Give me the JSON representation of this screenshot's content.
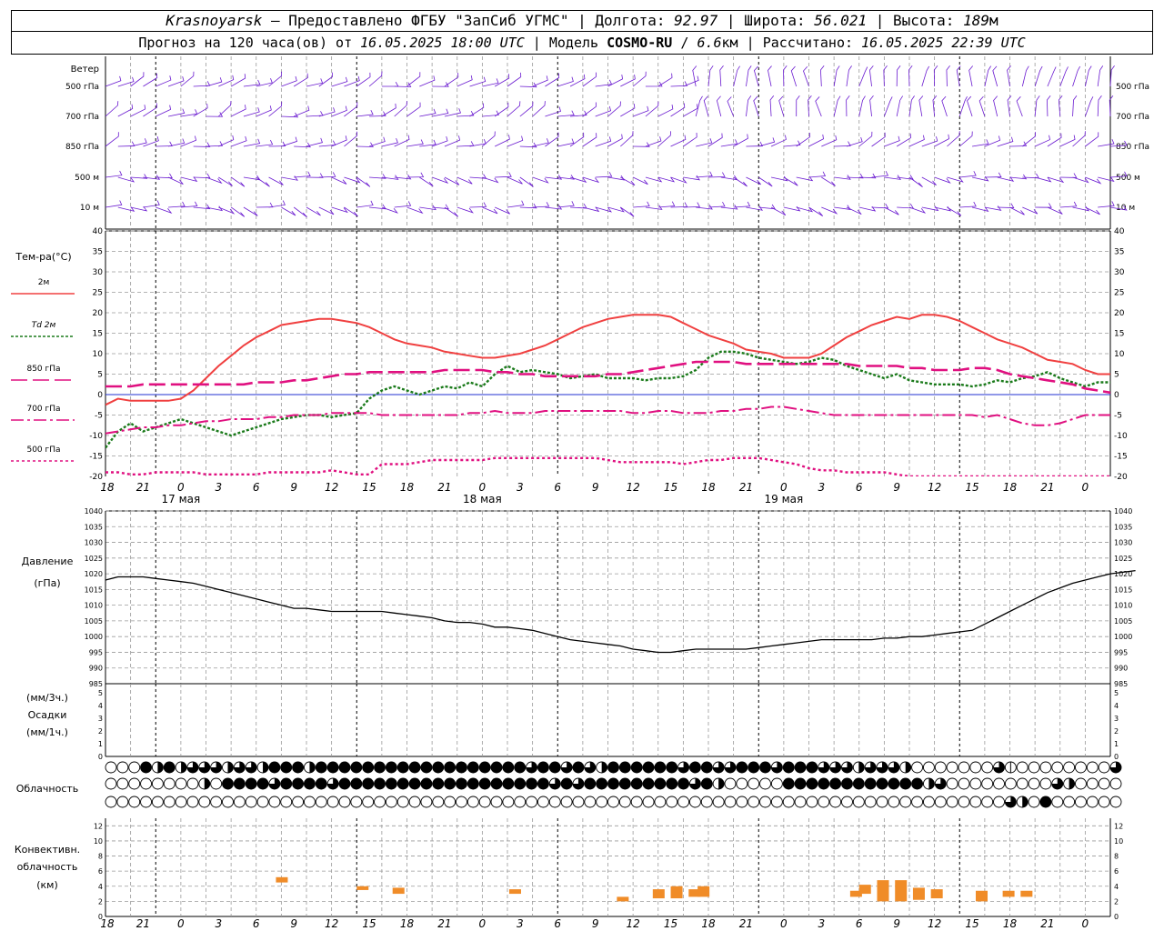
{
  "header": {
    "station": "Krasnoyarsk",
    "dash": " — ",
    "provider": "Предоставлено ФГБУ \"ЗапСиб УГМС\"",
    "lon_label": "Долгота:",
    "lon": "92.97",
    "lat_label": "Широта:",
    "lat": "56.021",
    "alt_label": "Высота:",
    "alt": "189",
    "alt_unit": "м",
    "forecast_label": "Прогноз на 120 часа(ов) от",
    "forecast_start": "16.05.2025 18:00 UTC",
    "model_label": "Модель",
    "model": "COSMO-RU",
    "model_res": "6.6",
    "model_res_unit": "км",
    "computed_label": "Рассчитано:",
    "computed": "16.05.2025 22:39 UTC"
  },
  "chart_data": {
    "type": "line",
    "time_axis": {
      "hour_ticks": [
        "18",
        "21",
        "0",
        "3",
        "6",
        "9",
        "12",
        "15",
        "18",
        "21",
        "0",
        "3",
        "6",
        "9",
        "12",
        "15",
        "18",
        "21",
        "0",
        "3",
        "6",
        "9",
        "12",
        "15",
        "18",
        "21",
        "0"
      ],
      "day_labels": [
        "17 мая",
        "18 мая",
        "19 мая"
      ]
    },
    "wind": {
      "title": "Ветер",
      "levels": [
        "500 гПа",
        "700 гПа",
        "850 гПа",
        "500 м",
        "10 м"
      ],
      "levels_right": [
        "500 гПа",
        "700 гПа",
        "850 гПа",
        "500 м",
        "10 м"
      ]
    },
    "temperature": {
      "title": "Тем-ра(°C)",
      "ylim": [
        -20,
        40
      ],
      "yticks": [
        "40",
        "35",
        "30",
        "25",
        "20",
        "15",
        "10",
        "5",
        "0",
        "-5",
        "-10",
        "-15",
        "-20"
      ],
      "series": [
        {
          "name": "2м",
          "color": "#f04040",
          "values": [
            -2.5,
            -1,
            -1.5,
            -1.5,
            -1.5,
            -1.5,
            -1,
            1,
            4,
            7,
            9.5,
            12,
            14,
            15.5,
            17,
            17.5,
            18,
            18.5,
            18.5,
            18,
            17.5,
            16.5,
            15,
            13.5,
            12.5,
            12,
            11.5,
            10.5,
            10,
            9.5,
            9,
            9,
            9.5,
            10,
            11,
            12,
            13.5,
            15,
            16.5,
            17.5,
            18.5,
            19,
            19.5,
            19.5,
            19.5,
            19,
            17.5,
            16,
            14.5,
            13.5,
            12.5,
            11,
            10.5,
            10,
            9,
            9,
            9,
            10,
            12,
            14,
            15.5,
            17,
            18,
            19,
            18.5,
            19.5,
            19.5,
            19,
            18,
            16.5,
            15,
            13.5,
            12.5,
            11.5,
            10,
            8.5,
            8,
            7.5,
            6,
            5,
            5,
            7
          ]
        },
        {
          "name": "Td 2м",
          "color": "#1a7a1a",
          "values": [
            -13,
            -9,
            -7,
            -9,
            -8,
            -7,
            -6,
            -7,
            -8,
            -9,
            -10,
            -9,
            -8,
            -7,
            -6,
            -5.5,
            -5,
            -5,
            -5.5,
            -5,
            -4.5,
            -1,
            1,
            2,
            1,
            0,
            1,
            2,
            1.5,
            3,
            2,
            5,
            7,
            5.5,
            6,
            5.5,
            5,
            4,
            4.5,
            5,
            4,
            4,
            4,
            3.5,
            4,
            4,
            4.5,
            6,
            9,
            10.5,
            10.5,
            10,
            9,
            8.5,
            8,
            7.5,
            8,
            9,
            8.5,
            7,
            6,
            5,
            4,
            5,
            3.5,
            3,
            2.5,
            2.5,
            2.5,
            2,
            2.5,
            3.5,
            3,
            4,
            4.5,
            5.5,
            4,
            3,
            2,
            3,
            3,
            3,
            3.5
          ]
        },
        {
          "name": "850 гПа",
          "color": "#e01080",
          "values": [
            2,
            2,
            2,
            2.5,
            2.5,
            2.5,
            2.5,
            2.5,
            2.5,
            2.5,
            2.5,
            2.5,
            3,
            3,
            3,
            3.5,
            3.5,
            4,
            4.5,
            5,
            5,
            5.5,
            5.5,
            5.5,
            5.5,
            5.5,
            5.5,
            6,
            6,
            6,
            6,
            5.5,
            5.5,
            5,
            5,
            4.5,
            4.5,
            4.5,
            4.5,
            4.5,
            5,
            5,
            5.5,
            6,
            6.5,
            7,
            7.5,
            8,
            8,
            8,
            8,
            7.5,
            7.5,
            7.5,
            7.5,
            7.5,
            7.5,
            7.5,
            7.5,
            7.5,
            7,
            7,
            7,
            7,
            6.5,
            6.5,
            6,
            6,
            6,
            6.5,
            6.5,
            6,
            5,
            4.5,
            4,
            3.5,
            3,
            2.5,
            1.5,
            1,
            0.5,
            0,
            -0.5,
            -1
          ]
        },
        {
          "name": "700 гПа",
          "color": "#e01080",
          "values": [
            -9.5,
            -9,
            -8.5,
            -8,
            -8,
            -7.5,
            -7.5,
            -7,
            -6.5,
            -6.5,
            -6,
            -6,
            -6,
            -5.5,
            -5.5,
            -5,
            -5,
            -5,
            -4.5,
            -4.5,
            -4.5,
            -4.5,
            -5,
            -5,
            -5,
            -5,
            -5,
            -5,
            -5,
            -4.5,
            -4.5,
            -4,
            -4.5,
            -4.5,
            -4.5,
            -4,
            -4,
            -4,
            -4,
            -4,
            -4,
            -4,
            -4.5,
            -4.5,
            -4,
            -4,
            -4.5,
            -4.5,
            -4.5,
            -4,
            -4,
            -3.5,
            -3.5,
            -3,
            -3,
            -3.5,
            -4,
            -4.5,
            -5,
            -5,
            -5,
            -5,
            -5,
            -5,
            -5,
            -5,
            -5,
            -5,
            -5,
            -5,
            -5.5,
            -5,
            -6,
            -7,
            -7.5,
            -7.5,
            -7,
            -6,
            -5,
            -5,
            -5,
            -5,
            -5
          ]
        },
        {
          "name": "500 гПа",
          "color": "#e01080",
          "values": [
            -19,
            -19,
            -19.5,
            -19.5,
            -19,
            -19,
            -19,
            -19,
            -19.5,
            -19.5,
            -19.5,
            -19.5,
            -19.5,
            -19,
            -19,
            -19,
            -19,
            -19,
            -18.5,
            -19,
            -19.5,
            -19.5,
            -17,
            -17,
            -17,
            -16.5,
            -16,
            -16,
            -16,
            -16,
            -16,
            -15.5,
            -15.5,
            -15.5,
            -15.5,
            -15.5,
            -15.5,
            -15.5,
            -15.5,
            -15.5,
            -16,
            -16.5,
            -16.5,
            -16.5,
            -16.5,
            -16.5,
            -17,
            -16.5,
            -16,
            -16,
            -15.5,
            -15.5,
            -15.5,
            -16,
            -16.5,
            -17,
            -18,
            -18.5,
            -18.5,
            -19,
            -19,
            -19,
            -19,
            -19.5,
            -20,
            -20.5,
            -21,
            -21,
            -21,
            -21,
            -20,
            -20.5,
            -21,
            -21,
            -21,
            -21,
            -21,
            -21,
            -21,
            -21,
            -21,
            -21,
            -21
          ]
        }
      ]
    },
    "pressure": {
      "title": "Давление",
      "unit": "(гПа)",
      "ylim": [
        985,
        1040
      ],
      "yticks": [
        "1040",
        "1035",
        "1030",
        "1025",
        "1020",
        "1015",
        "1010",
        "1005",
        "1000",
        "995",
        "990",
        "985"
      ],
      "color": "#000000",
      "values": [
        1018,
        1019,
        1019,
        1019,
        1018.5,
        1018,
        1017.5,
        1017,
        1016,
        1015,
        1014,
        1013,
        1012,
        1011,
        1010,
        1009,
        1009,
        1008.5,
        1008,
        1008,
        1008,
        1008,
        1008,
        1007.5,
        1007,
        1006.5,
        1006,
        1005,
        1004.5,
        1004.5,
        1004,
        1003,
        1003,
        1002.5,
        1002,
        1001,
        1000,
        999,
        998.5,
        998,
        997.5,
        997,
        996,
        995.5,
        995,
        995,
        995.5,
        996,
        996,
        996,
        996,
        996,
        996.5,
        997,
        997.5,
        998,
        998.5,
        999,
        999,
        999,
        999,
        999,
        999.5,
        999.5,
        1000,
        1000,
        1000.5,
        1001,
        1001.5,
        1002,
        1004,
        1006,
        1008,
        1010,
        1012,
        1014,
        1015.5,
        1017,
        1018,
        1019,
        1020,
        1020.5,
        1021
      ]
    },
    "precip": {
      "title": "Осадки",
      "unit3": "(мм/3ч.)",
      "unit1": "(мм/1ч.)",
      "ylim": [
        0,
        5
      ],
      "yticks": [
        "5",
        "4",
        "3",
        "2",
        "1",
        "0"
      ],
      "values": []
    },
    "cloud": {
      "title": "Облачность",
      "rows": [
        [
          0,
          0,
          0,
          4,
          2,
          4,
          2,
          3,
          3,
          3,
          2,
          3,
          3,
          2,
          4,
          4,
          4,
          2,
          4,
          4,
          4,
          4,
          4,
          4,
          4,
          4,
          4,
          4,
          4,
          4,
          4,
          4,
          4,
          4,
          4,
          4,
          3,
          4,
          4,
          3,
          4,
          3,
          2,
          4,
          4,
          4,
          4,
          4,
          4,
          3,
          4,
          4,
          3,
          3,
          4,
          4,
          4,
          3,
          4,
          4,
          4,
          3,
          3,
          3,
          2,
          3,
          3,
          3,
          2,
          0,
          0,
          0,
          0,
          0,
          0,
          0,
          3,
          1,
          0,
          0,
          0,
          0,
          0,
          0,
          0,
          0,
          3
        ],
        [
          0,
          0,
          0,
          0,
          0,
          0,
          0,
          0,
          2,
          0,
          4,
          4,
          4,
          4,
          3,
          4,
          4,
          4,
          4,
          3,
          4,
          4,
          4,
          4,
          4,
          4,
          4,
          4,
          4,
          4,
          4,
          4,
          4,
          4,
          4,
          4,
          4,
          4,
          3,
          4,
          3,
          4,
          4,
          4,
          4,
          4,
          4,
          4,
          4,
          4,
          3,
          4,
          2,
          0,
          0,
          0,
          0,
          0,
          4,
          4,
          4,
          4,
          4,
          4,
          4,
          4,
          4,
          4,
          4,
          4,
          2,
          3,
          0,
          0,
          0,
          0,
          0,
          0,
          0,
          0,
          0,
          3,
          2,
          0,
          0,
          0,
          0
        ],
        [
          0,
          0,
          0,
          0,
          0,
          0,
          0,
          0,
          0,
          0,
          0,
          0,
          0,
          0,
          0,
          0,
          0,
          0,
          0,
          0,
          0,
          0,
          0,
          0,
          0,
          0,
          0,
          0,
          0,
          0,
          0,
          0,
          0,
          0,
          0,
          0,
          0,
          0,
          0,
          0,
          0,
          0,
          0,
          0,
          0,
          0,
          0,
          0,
          0,
          0,
          0,
          0,
          0,
          0,
          0,
          0,
          0,
          0,
          0,
          0,
          0,
          0,
          0,
          0,
          0,
          0,
          0,
          0,
          0,
          0,
          0,
          0,
          0,
          0,
          0,
          0,
          0,
          3,
          2,
          0,
          4,
          0,
          0,
          0,
          0,
          0,
          0
        ]
      ]
    },
    "convective": {
      "title1": "Конвективн.",
      "title2": "облачность",
      "unit": "(км)",
      "ylim": [
        0,
        13
      ],
      "yticks": [
        "12",
        "10",
        "8",
        "6",
        "4",
        "2",
        "0"
      ],
      "color": "#f08c28",
      "bars": [
        {
          "t": 19,
          "base": 4.5,
          "top": 5.2
        },
        {
          "t": 28,
          "base": 3.5,
          "top": 4.0
        },
        {
          "t": 32,
          "base": 3.0,
          "top": 3.8
        },
        {
          "t": 45,
          "base": 3.0,
          "top": 3.6
        },
        {
          "t": 57,
          "base": 2.0,
          "top": 2.6
        },
        {
          "t": 61,
          "base": 2.4,
          "top": 3.6
        },
        {
          "t": 63,
          "base": 2.4,
          "top": 4.0
        },
        {
          "t": 65,
          "base": 2.6,
          "top": 3.6
        },
        {
          "t": 66,
          "base": 2.6,
          "top": 4.0
        },
        {
          "t": 83,
          "base": 2.6,
          "top": 3.4
        },
        {
          "t": 84,
          "base": 3.0,
          "top": 4.2
        },
        {
          "t": 86,
          "base": 2.0,
          "top": 4.8
        },
        {
          "t": 88,
          "base": 2.0,
          "top": 4.8
        },
        {
          "t": 90,
          "base": 2.2,
          "top": 3.8
        },
        {
          "t": 92,
          "base": 2.4,
          "top": 3.6
        },
        {
          "t": 97,
          "base": 2.0,
          "top": 3.4
        },
        {
          "t": 100,
          "base": 2.6,
          "top": 3.4
        },
        {
          "t": 102,
          "base": 2.6,
          "top": 3.4
        }
      ]
    }
  }
}
